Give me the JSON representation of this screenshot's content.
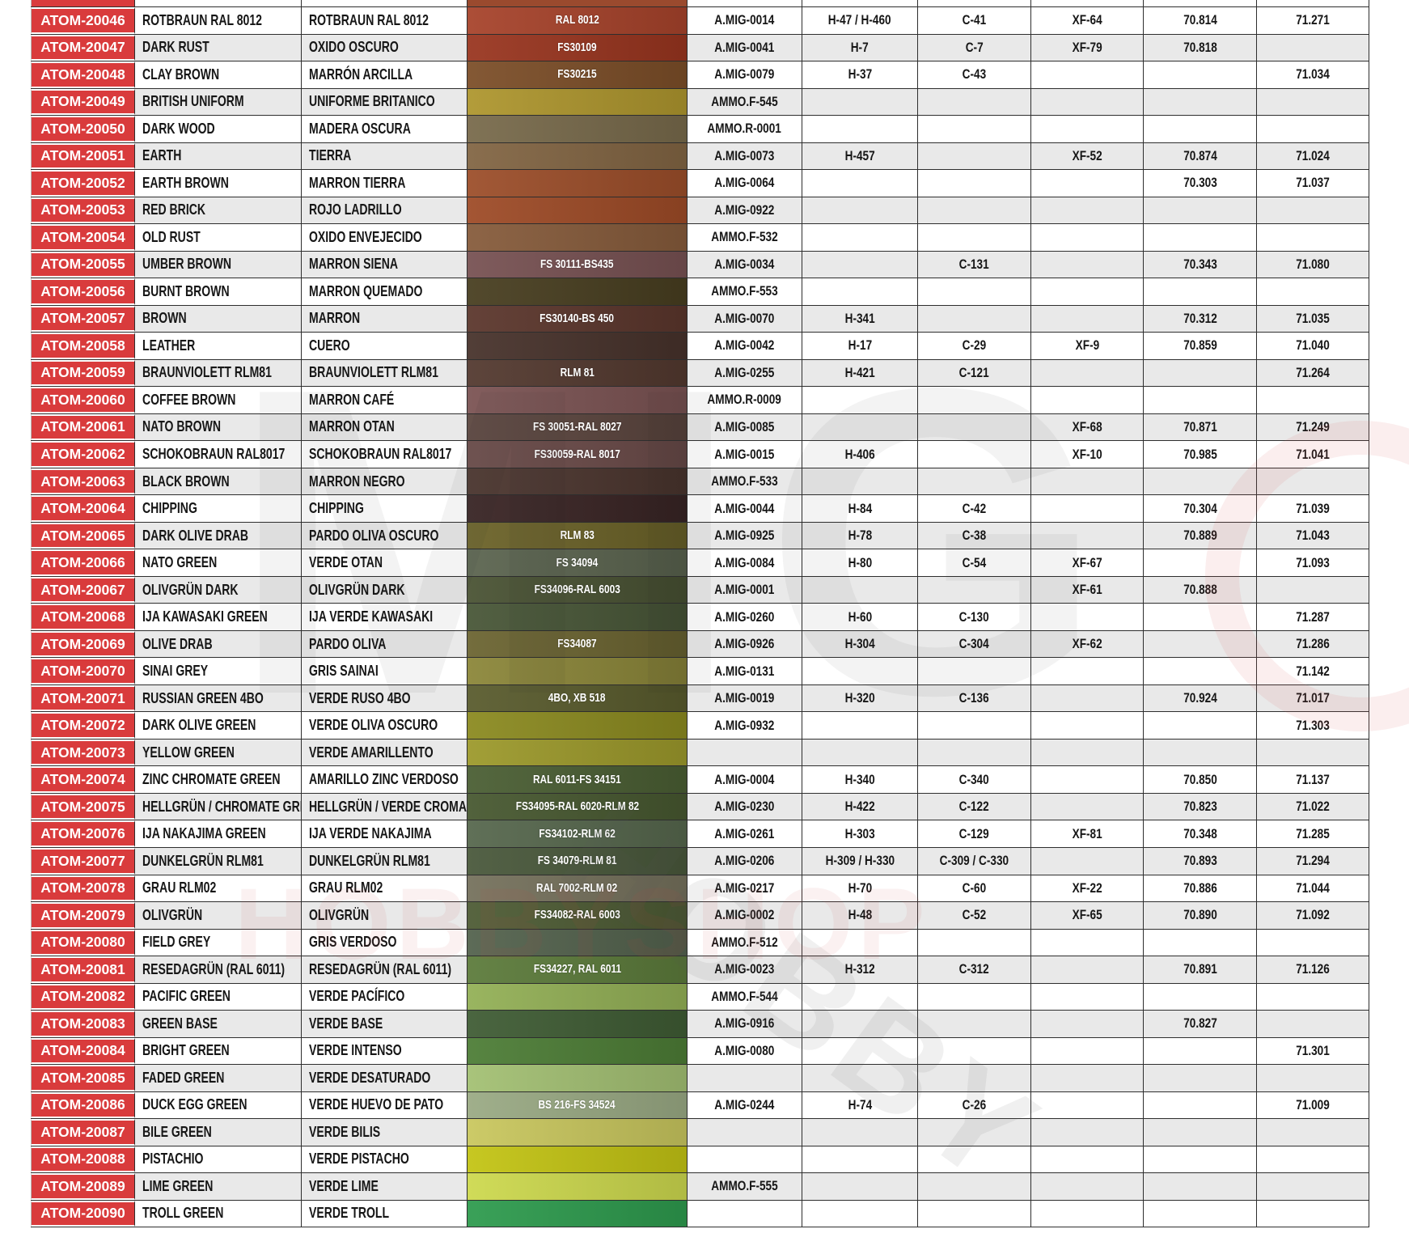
{
  "table": {
    "partial_top_row": {
      "swatch_color": "#9A4A2E"
    },
    "stripe_colors": {
      "even": "#ffffff",
      "odd": "#e9e9e9"
    },
    "atom_cell_color": "#d93b3c",
    "rows": [
      {
        "code": "ATOM-20046",
        "en": "ROTBRAUN RAL 8012",
        "es": "ROTBRAUN RAL 8012",
        "swatch_label": "RAL 8012",
        "swatch_color": "#A7432B",
        "amig": "A.MIG-0014",
        "h": "H-47 / H-460",
        "c": "C-41",
        "xf": "XF-64",
        "v70": "70.814",
        "v71": "71.271"
      },
      {
        "code": "ATOM-20047",
        "en": "DARK RUST",
        "es": "OXIDO OSCURO",
        "swatch_label": "FS30109",
        "swatch_color": "#99351F",
        "amig": "A.MIG-0041",
        "h": "H-7",
        "c": "C-7",
        "xf": "XF-79",
        "v70": "70.818",
        "v71": ""
      },
      {
        "code": "ATOM-20048",
        "en": "CLAY BROWN",
        "es": "MARRÓN ARCILLA",
        "swatch_label": "FS30215",
        "swatch_color": "#7C4E28",
        "amig": "A.MIG-0079",
        "h": "H-37",
        "c": "C-43",
        "xf": "",
        "v70": "",
        "v71": "71.034"
      },
      {
        "code": "ATOM-20049",
        "en": "BRITISH UNIFORM",
        "es": "UNIFORME BRITANICO",
        "swatch_label": "",
        "swatch_color": "#AE962E",
        "amig": "AMMO.F-545",
        "h": "",
        "c": "",
        "xf": "",
        "v70": "",
        "v71": ""
      },
      {
        "code": "ATOM-20050",
        "en": "DARK WOOD",
        "es": "MADERA OSCURA",
        "swatch_label": "",
        "swatch_color": "#786A4B",
        "amig": "AMMO.R-0001",
        "h": "",
        "c": "",
        "xf": "",
        "v70": "",
        "v71": ""
      },
      {
        "code": "ATOM-20051",
        "en": "EARTH",
        "es": "TIERRA",
        "swatch_label": "",
        "swatch_color": "#826543",
        "amig": "A.MIG-0073",
        "h": "H-457",
        "c": "",
        "xf": "XF-52",
        "v70": "70.874",
        "v71": "71.024"
      },
      {
        "code": "ATOM-20052",
        "en": "EARTH BROWN",
        "es": "MARRON TIERRA",
        "swatch_label": "",
        "swatch_color": "#9C4E2A",
        "amig": "A.MIG-0064",
        "h": "",
        "c": "",
        "xf": "",
        "v70": "70.303",
        "v71": "71.037"
      },
      {
        "code": "ATOM-20053",
        "en": "RED BRICK",
        "es": "ROJO LADRILLO",
        "swatch_label": "",
        "swatch_color": "#9E4B27",
        "amig": "A.MIG-0922",
        "h": "",
        "c": "",
        "xf": "",
        "v70": "",
        "v71": ""
      },
      {
        "code": "ATOM-20054",
        "en": "OLD RUST",
        "es": "OXIDO ENVEJECIDO",
        "swatch_label": "",
        "swatch_color": "#865B3B",
        "amig": "AMMO.F-532",
        "h": "",
        "c": "",
        "xf": "",
        "v70": "",
        "v71": ""
      },
      {
        "code": "ATOM-20055",
        "en": "UMBER BROWN",
        "es": "MARRON SIENA",
        "swatch_label": "FS 30111-BS435",
        "swatch_color": "#775152",
        "amig": "A.MIG-0034",
        "h": "",
        "c": "C-131",
        "xf": "",
        "v70": "70.343",
        "v71": "71.080"
      },
      {
        "code": "ATOM-20056",
        "en": "BURNT BROWN",
        "es": "MARRON QUEMADO",
        "swatch_label": "",
        "swatch_color": "#483E20",
        "amig": "AMMO.F-553",
        "h": "",
        "c": "",
        "xf": "",
        "v70": "",
        "v71": ""
      },
      {
        "code": "ATOM-20057",
        "en": "BROWN",
        "es": "MARRON",
        "swatch_label": "FS30140-BS 450",
        "swatch_color": "#5B362C",
        "amig": "A.MIG-0070",
        "h": "H-341",
        "c": "",
        "xf": "",
        "v70": "70.312",
        "v71": "71.035"
      },
      {
        "code": "ATOM-20058",
        "en": "LEATHER",
        "es": "CUERO",
        "swatch_label": "",
        "swatch_color": "#47322B",
        "amig": "A.MIG-0042",
        "h": "H-17",
        "c": "C-29",
        "xf": "XF-9",
        "v70": "70.859",
        "v71": "71.040"
      },
      {
        "code": "ATOM-20059",
        "en": "BRAUNVIOLETT RLM81",
        "es": "BRAUNVIOLETT RLM81",
        "swatch_label": "RLM 81",
        "swatch_color": "#53392F",
        "amig": "A.MIG-0255",
        "h": "H-421",
        "c": "C-121",
        "xf": "",
        "v70": "",
        "v71": "71.264"
      },
      {
        "code": "ATOM-20060",
        "en": "COFFEE BROWN",
        "es": "MARRON CAFÉ",
        "swatch_label": "",
        "swatch_color": "#7B5353",
        "amig": "AMMO.R-0009",
        "h": "",
        "c": "",
        "xf": "",
        "v70": "",
        "v71": ""
      },
      {
        "code": "ATOM-20061",
        "en": "NATO BROWN",
        "es": "MARRON OTAN",
        "swatch_label": "FS 30051-RAL 8027",
        "swatch_color": "#5B453E",
        "amig": "A.MIG-0085",
        "h": "",
        "c": "",
        "xf": "XF-68",
        "v70": "70.871",
        "v71": "71.249"
      },
      {
        "code": "ATOM-20062",
        "en": "SCHOKOBRAUN RAL8017",
        "es": "SCHOKOBRAUN RAL8017",
        "swatch_label": "FS30059-RAL 8017",
        "swatch_color": "#6B4B49",
        "amig": "A.MIG-0015",
        "h": "H-406",
        "c": "",
        "xf": "XF-10",
        "v70": "70.985",
        "v71": "71.041"
      },
      {
        "code": "ATOM-20063",
        "en": "BLACK BROWN",
        "es": "MARRON NEGRO",
        "swatch_label": "",
        "swatch_color": "#4B352E",
        "amig": "AMMO.F-533",
        "h": "",
        "c": "",
        "xf": "",
        "v70": "",
        "v71": ""
      },
      {
        "code": "ATOM-20064",
        "en": "CHIPPING",
        "es": "CHIPPING",
        "swatch_label": "",
        "swatch_color": "#392424",
        "amig": "A.MIG-0044",
        "h": "H-84",
        "c": "C-42",
        "xf": "",
        "v70": "70.304",
        "v71": "71.039"
      },
      {
        "code": "ATOM-20065",
        "en": "DARK OLIVE DRAB",
        "es": "PARDO OLIVA OSCURO",
        "swatch_label": "RLM 83",
        "swatch_color": "#6B6228",
        "amig": "A.MIG-0925",
        "h": "H-78",
        "c": "C-38",
        "xf": "",
        "v70": "70.889",
        "v71": "71.043"
      },
      {
        "code": "ATOM-20066",
        "en": "NATO GREEN",
        "es": "VERDE OTAN",
        "swatch_label": "FS 34094",
        "swatch_color": "#5B644F",
        "amig": "A.MIG-0084",
        "h": "H-80",
        "c": "C-54",
        "xf": "XF-67",
        "v70": "",
        "v71": "71.093"
      },
      {
        "code": "ATOM-20067",
        "en": "OLIVGRÜN DARK",
        "es": "OLIVGRÜN DARK",
        "swatch_label": "FS34096-RAL 6003",
        "swatch_color": "#495233",
        "amig": "A.MIG-0001",
        "h": "",
        "c": "",
        "xf": "XF-61",
        "v70": "70.888",
        "v71": ""
      },
      {
        "code": "ATOM-20068",
        "en": "IJA KAWASAKI GREEN",
        "es": "IJA VERDE KAWASAKI",
        "swatch_label": "",
        "swatch_color": "#485637",
        "amig": "A.MIG-0260",
        "h": "H-60",
        "c": "C-130",
        "xf": "",
        "v70": "",
        "v71": "71.287"
      },
      {
        "code": "ATOM-20069",
        "en": "OLIVE DRAB",
        "es": "PARDO OLIVA",
        "swatch_label": "FS34087",
        "swatch_color": "#6B6431",
        "amig": "A.MIG-0926",
        "h": "H-304",
        "c": "C-304",
        "xf": "XF-62",
        "v70": "",
        "v71": "71.286"
      },
      {
        "code": "ATOM-20070",
        "en": "SINAI GREY",
        "es": "GRIS SAINAI",
        "swatch_label": "",
        "swatch_color": "#8B8639",
        "amig": "A.MIG-0131",
        "h": "",
        "c": "",
        "xf": "",
        "v70": "",
        "v71": "71.142"
      },
      {
        "code": "ATOM-20071",
        "en": "RUSSIAN GREEN 4BO",
        "es": "VERDE RUSO 4BO",
        "swatch_label": "4BO, XB 518",
        "swatch_color": "#595B2D",
        "amig": "A.MIG-0019",
        "h": "H-320",
        "c": "C-136",
        "xf": "",
        "v70": "70.924",
        "v71": "71.017"
      },
      {
        "code": "ATOM-20072",
        "en": "DARK OLIVE GREEN",
        "es": "VERDE OLIVA OSCURO",
        "swatch_label": "",
        "swatch_color": "#8B8A20",
        "amig": "A.MIG-0932",
        "h": "",
        "c": "",
        "xf": "",
        "v70": "",
        "v71": "71.303"
      },
      {
        "code": "ATOM-20073",
        "en": "YELLOW GREEN",
        "es": "VERDE AMARILLENTO",
        "swatch_label": "",
        "swatch_color": "#9C992B",
        "amig": "",
        "h": "",
        "c": "",
        "xf": "",
        "v70": "",
        "v71": ""
      },
      {
        "code": "ATOM-20074",
        "en": "ZINC CHROMATE GREEN",
        "es": "AMARILLO ZINC VERDOSO",
        "swatch_label": "RAL 6011-FS 34151",
        "swatch_color": "#4A5E33",
        "amig": "A.MIG-0004",
        "h": "H-340",
        "c": "C-340",
        "xf": "",
        "v70": "70.850",
        "v71": "71.137"
      },
      {
        "code": "ATOM-20075",
        "en": "HELLGRÜN / CHROMATE GREEN",
        "es": "HELLGRÜN / VERDE CROMADO",
        "swatch_label": "FS34095-RAL 6020-RLM 82",
        "swatch_color": "#475830",
        "amig": "A.MIG-0230",
        "h": "H-422",
        "c": "C-122",
        "xf": "",
        "v70": "70.823",
        "v71": "71.022"
      },
      {
        "code": "ATOM-20076",
        "en": "IJA NAKAJIMA GREEN",
        "es": "IJA VERDE NAKAJIMA",
        "swatch_label": "FS34102-RLM 62",
        "swatch_color": "#56674D",
        "amig": "A.MIG-0261",
        "h": "H-303",
        "c": "C-129",
        "xf": "XF-81",
        "v70": "70.348",
        "v71": "71.285"
      },
      {
        "code": "ATOM-20077",
        "en": "DUNKELGRÜN RLM81",
        "es": "DUNKELGRÜN RLM81",
        "swatch_label": "FS 34079-RLM 81",
        "swatch_color": "#49583B",
        "amig": "A.MIG-0206",
        "h": "H-309 / H-330",
        "c": "C-309 / C-330",
        "xf": "",
        "v70": "70.893",
        "v71": "71.294"
      },
      {
        "code": "ATOM-20078",
        "en": "GRAU RLM02",
        "es": "GRAU RLM02",
        "swatch_label": "RAL 7002-RLM 02",
        "swatch_color": "#75715C",
        "amig": "A.MIG-0217",
        "h": "H-70",
        "c": "C-60",
        "xf": "XF-22",
        "v70": "70.886",
        "v71": "71.044"
      },
      {
        "code": "ATOM-20079",
        "en": "OLIVGRÜN",
        "es": "OLIVGRÜN",
        "swatch_label": "FS34082-RAL 6003",
        "swatch_color": "#4D5B34",
        "amig": "A.MIG-0002",
        "h": "H-48",
        "c": "C-52",
        "xf": "XF-65",
        "v70": "70.890",
        "v71": "71.092"
      },
      {
        "code": "ATOM-20080",
        "en": "FIELD GREY",
        "es": "GRIS VERDOSO",
        "swatch_label": "",
        "swatch_color": "#53624D",
        "amig": "AMMO.F-512",
        "h": "",
        "c": "",
        "xf": "",
        "v70": "",
        "v71": ""
      },
      {
        "code": "ATOM-20081",
        "en": "RESEDAGRÜN (RAL 6011)",
        "es": "RESEDAGRÜN (RAL 6011)",
        "swatch_label": "FS34227, RAL 6011",
        "swatch_color": "#5C7B3B",
        "amig": "A.MIG-0023",
        "h": "H-312",
        "c": "C-312",
        "xf": "",
        "v70": "70.891",
        "v71": "71.126"
      },
      {
        "code": "ATOM-20082",
        "en": "PACIFIC GREEN",
        "es": "VERDE PACÍFICO",
        "swatch_label": "",
        "swatch_color": "#93B056",
        "amig": "AMMO.F-544",
        "h": "",
        "c": "",
        "xf": "",
        "v70": "",
        "v71": ""
      },
      {
        "code": "ATOM-20083",
        "en": "GREEN BASE",
        "es": "VERDE BASE",
        "swatch_label": "",
        "swatch_color": "#3F5C34",
        "amig": "A.MIG-0916",
        "h": "",
        "c": "",
        "xf": "",
        "v70": "70.827",
        "v71": ""
      },
      {
        "code": "ATOM-20084",
        "en": "BRIGHT GREEN",
        "es": "VERDE INTENSO",
        "swatch_label": "",
        "swatch_color": "#4D7D36",
        "amig": "A.MIG-0080",
        "h": "",
        "c": "",
        "xf": "",
        "v70": "",
        "v71": "71.301"
      },
      {
        "code": "ATOM-20085",
        "en": "FADED GREEN",
        "es": "VERDE DESATURADO",
        "swatch_label": "",
        "swatch_color": "#A3C073",
        "amig": "",
        "h": "",
        "c": "",
        "xf": "",
        "v70": "",
        "v71": ""
      },
      {
        "code": "ATOM-20086",
        "en": "DUCK EGG GREEN",
        "es": "VERDE HUEVO DE PATO",
        "swatch_label": "BS 216-FS 34524",
        "swatch_color": "#9AAA84",
        "amig": "A.MIG-0244",
        "h": "H-74",
        "c": "C-26",
        "xf": "",
        "v70": "",
        "v71": "71.009"
      },
      {
        "code": "ATOM-20087",
        "en": "BILE GREEN",
        "es": "VERDE BILIS",
        "swatch_label": "",
        "swatch_color": "#C9C75E",
        "amig": "",
        "h": "",
        "c": "",
        "xf": "",
        "v70": "",
        "v71": ""
      },
      {
        "code": "ATOM-20088",
        "en": "PISTACHIO",
        "es": "VERDE PISTACHO",
        "swatch_label": "",
        "swatch_color": "#C3C414",
        "amig": "",
        "h": "",
        "c": "",
        "xf": "",
        "v70": "",
        "v71": ""
      },
      {
        "code": "ATOM-20089",
        "en": "LIME GREEN",
        "es": "VERDE LIME",
        "swatch_label": "",
        "swatch_color": "#CDD94E",
        "amig": "AMMO.F-555",
        "h": "",
        "c": "",
        "xf": "",
        "v70": "",
        "v71": ""
      },
      {
        "code": "ATOM-20090",
        "en": "TROLL GREEN",
        "es": "VERDE TROLL",
        "swatch_label": "",
        "swatch_color": "#2E9B4E",
        "amig": "",
        "h": "",
        "c": "",
        "xf": "",
        "v70": "",
        "v71": ""
      }
    ]
  },
  "watermark": {
    "big_text": "MIG",
    "diagonal_text": "HOBBY",
    "shop_text": "HOBBYSHOP"
  }
}
